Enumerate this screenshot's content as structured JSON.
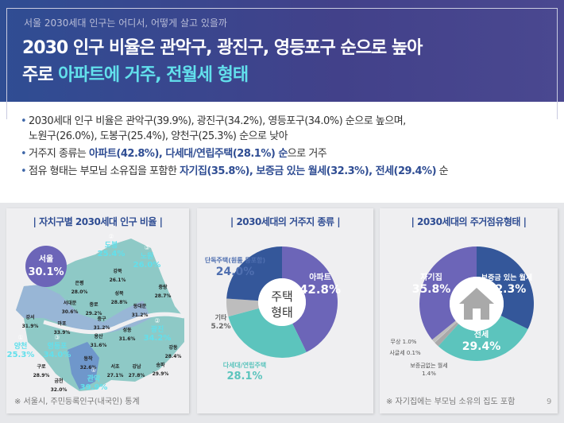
{
  "header": {
    "subtitle": "서울 2030세대 인구는 어디서, 어떻게 살고 있을까",
    "title_line1": "2030 인구 비율은 관악구, 광진구, 영등포구 순으로 높아",
    "title_line2_prefix": "주로 ",
    "title_line2_highlight": "아파트에 거주, 전월세 형태"
  },
  "bullets": [
    {
      "text": "2030세대 인구 비율은 관악구(39.9%), 광진구(34.2%), 영등포구(34.0%)  순으로 높으며,",
      "text2": "노원구(26.0%), 도봉구(25.4%), 양천구(25.3%) 순으로 낮아"
    },
    {
      "prefix": "거주지 종류는 ",
      "em": "아파트(42.8%), 다세대/연립주택(28.1%) 순",
      "suffix": "으로 거주"
    },
    {
      "prefix": "점유 형태는 부모님 소유집을 포함한 ",
      "em": "자기집(35.8%), 보증금 있는 월세(32.3%), 전세(29.4%)",
      "suffix": " 순"
    }
  ],
  "map_panel": {
    "title": "| 자치구별 2030세대 인구 비율 |",
    "seoul_label": "서울",
    "seoul_value": "30.1%",
    "districts": [
      {
        "name": "도봉",
        "value": "25.4%",
        "rank": "②"
      },
      {
        "name": "노원",
        "value": "26.0%",
        "rank": "③"
      },
      {
        "name": "강북",
        "value": "26.1%"
      },
      {
        "name": "은평",
        "value": "28.0%"
      },
      {
        "name": "성북",
        "value": "28.8%"
      },
      {
        "name": "중랑",
        "value": "28.7%"
      },
      {
        "name": "종로",
        "value": "29.2%"
      },
      {
        "name": "서대문",
        "value": "30.6%"
      },
      {
        "name": "동대문",
        "value": "31.2%"
      },
      {
        "name": "강서",
        "value": "31.9%"
      },
      {
        "name": "마포",
        "value": "33.9%"
      },
      {
        "name": "중구",
        "value": "31.2%"
      },
      {
        "name": "성동",
        "value": "31.6%"
      },
      {
        "name": "광진",
        "value": "34.2%",
        "rank": "②"
      },
      {
        "name": "강동",
        "value": "28.4%"
      },
      {
        "name": "용산",
        "value": "31.6%"
      },
      {
        "name": "양천",
        "value": "25.3%",
        "rank": "①"
      },
      {
        "name": "영등포",
        "value": "34.0%",
        "rank": "③"
      },
      {
        "name": "동작",
        "value": "32.6%"
      },
      {
        "name": "구로",
        "value": "28.9%"
      },
      {
        "name": "서초",
        "value": "27.1%"
      },
      {
        "name": "강남",
        "value": "27.8%"
      },
      {
        "name": "송파",
        "value": "29.9%"
      },
      {
        "name": "금천",
        "value": "32.0%"
      },
      {
        "name": "관악",
        "value": "39.9%",
        "rank": "①"
      }
    ],
    "note": "※ 서울시, 주민등록인구(내국인) 통계"
  },
  "chart_data": [
    {
      "type": "pie",
      "title": "| 2030세대의 거주지 종류 |",
      "center_label": [
        "주택",
        "형태"
      ],
      "categories": [
        "아파트",
        "다세대/연립주택",
        "기타",
        "단독주택(원룸 등포함)"
      ],
      "values": [
        42.8,
        28.1,
        5.2,
        24.0
      ],
      "colors": [
        "#6c65b8",
        "#5cc4bd",
        "#bdbdbd",
        "#34579a"
      ]
    },
    {
      "type": "pie",
      "title": "| 2030세대의 주거점유형태 |",
      "center_icon": "house-icon",
      "categories": [
        "보증금 있는 월세",
        "전세",
        "보증금없는 월세",
        "사글세",
        "무상",
        "자기집"
      ],
      "values": [
        32.3,
        29.4,
        1.4,
        0.1,
        1.0,
        35.8
      ],
      "colors": [
        "#34579a",
        "#5cc4bd",
        "#a9a9a9",
        "#cfcfcf",
        "#bdbdbd",
        "#6c65b8"
      ],
      "note": "※ 자기집에는 부모님 소유의 집도 포함"
    }
  ],
  "page_number": "9",
  "colors": {
    "header": "#3a478e",
    "highlight": "#62e0ec",
    "accent": "#2f4d93"
  }
}
